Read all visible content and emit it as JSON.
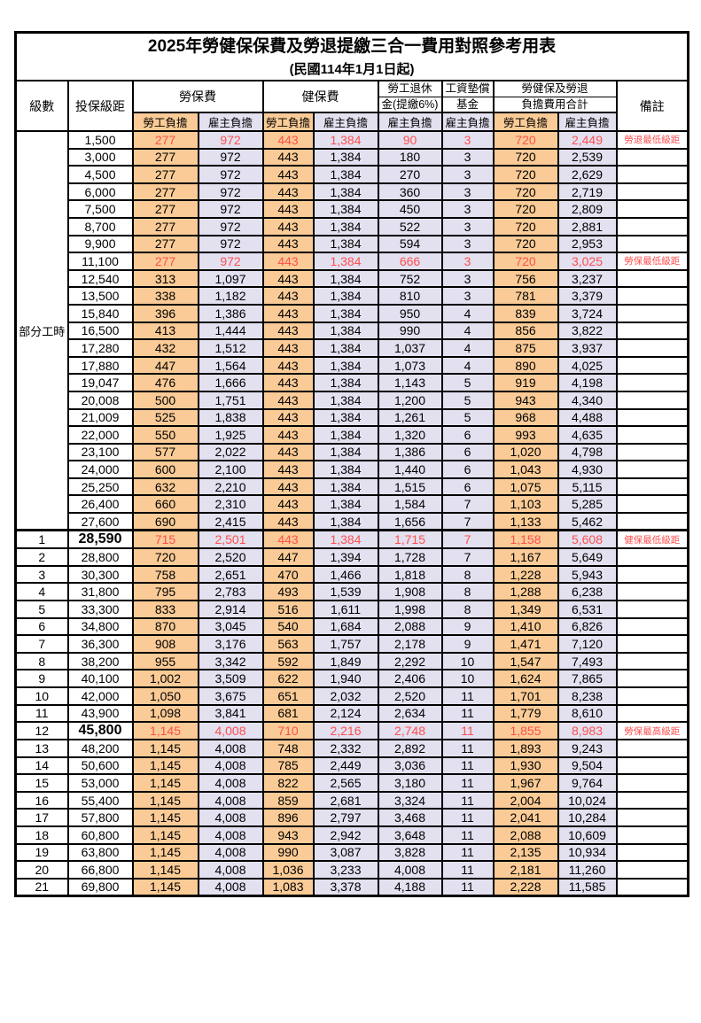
{
  "title": "2025年勞健保保費及勞退提繳三合一費用對照參考用表",
  "subtitle": "(民國114年1月1日起)",
  "header": {
    "level": "級數",
    "bracket": "投保級距",
    "labor_insurance": "勞保費",
    "health_insurance": "健保費",
    "pension_line1": "勞工退休",
    "pension_line2": "金(提繳6%)",
    "wage_fund_line1": "工資墊償",
    "wage_fund_line2": "基金",
    "total_line1": "勞健保及勞退",
    "total_line2": "負擔費用合計",
    "remark": "備註",
    "employee": "勞工負擔",
    "employer": "雇主負擔"
  },
  "part_time": {
    "label": "部分工時",
    "rowspan": 23
  },
  "colors": {
    "employee_bg": "#FACB96",
    "employer_bg": "#E3E0F0",
    "highlight_text": "#FF4F4F",
    "border": "#000000"
  },
  "rows": [
    {
      "bracket": "1,500",
      "li_emp": "277",
      "li_er": "972",
      "hi_emp": "443",
      "hi_er": "1,384",
      "pension": "90",
      "fund": "3",
      "tot_emp": "720",
      "tot_er": "2,449",
      "note": "勞退最低級距",
      "highlight": true
    },
    {
      "bracket": "3,000",
      "li_emp": "277",
      "li_er": "972",
      "hi_emp": "443",
      "hi_er": "1,384",
      "pension": "180",
      "fund": "3",
      "tot_emp": "720",
      "tot_er": "2,539"
    },
    {
      "bracket": "4,500",
      "li_emp": "277",
      "li_er": "972",
      "hi_emp": "443",
      "hi_er": "1,384",
      "pension": "270",
      "fund": "3",
      "tot_emp": "720",
      "tot_er": "2,629"
    },
    {
      "bracket": "6,000",
      "li_emp": "277",
      "li_er": "972",
      "hi_emp": "443",
      "hi_er": "1,384",
      "pension": "360",
      "fund": "3",
      "tot_emp": "720",
      "tot_er": "2,719"
    },
    {
      "bracket": "7,500",
      "li_emp": "277",
      "li_er": "972",
      "hi_emp": "443",
      "hi_er": "1,384",
      "pension": "450",
      "fund": "3",
      "tot_emp": "720",
      "tot_er": "2,809"
    },
    {
      "bracket": "8,700",
      "li_emp": "277",
      "li_er": "972",
      "hi_emp": "443",
      "hi_er": "1,384",
      "pension": "522",
      "fund": "3",
      "tot_emp": "720",
      "tot_er": "2,881"
    },
    {
      "bracket": "9,900",
      "li_emp": "277",
      "li_er": "972",
      "hi_emp": "443",
      "hi_er": "1,384",
      "pension": "594",
      "fund": "3",
      "tot_emp": "720",
      "tot_er": "2,953"
    },
    {
      "bracket": "11,100",
      "li_emp": "277",
      "li_er": "972",
      "hi_emp": "443",
      "hi_er": "1,384",
      "pension": "666",
      "fund": "3",
      "tot_emp": "720",
      "tot_er": "3,025",
      "note": "勞保最低級距",
      "highlight": true
    },
    {
      "bracket": "12,540",
      "li_emp": "313",
      "li_er": "1,097",
      "hi_emp": "443",
      "hi_er": "1,384",
      "pension": "752",
      "fund": "3",
      "tot_emp": "756",
      "tot_er": "3,237"
    },
    {
      "bracket": "13,500",
      "li_emp": "338",
      "li_er": "1,182",
      "hi_emp": "443",
      "hi_er": "1,384",
      "pension": "810",
      "fund": "3",
      "tot_emp": "781",
      "tot_er": "3,379"
    },
    {
      "bracket": "15,840",
      "li_emp": "396",
      "li_er": "1,386",
      "hi_emp": "443",
      "hi_er": "1,384",
      "pension": "950",
      "fund": "4",
      "tot_emp": "839",
      "tot_er": "3,724"
    },
    {
      "bracket": "16,500",
      "li_emp": "413",
      "li_er": "1,444",
      "hi_emp": "443",
      "hi_er": "1,384",
      "pension": "990",
      "fund": "4",
      "tot_emp": "856",
      "tot_er": "3,822"
    },
    {
      "bracket": "17,280",
      "li_emp": "432",
      "li_er": "1,512",
      "hi_emp": "443",
      "hi_er": "1,384",
      "pension": "1,037",
      "fund": "4",
      "tot_emp": "875",
      "tot_er": "3,937"
    },
    {
      "bracket": "17,880",
      "li_emp": "447",
      "li_er": "1,564",
      "hi_emp": "443",
      "hi_er": "1,384",
      "pension": "1,073",
      "fund": "4",
      "tot_emp": "890",
      "tot_er": "4,025"
    },
    {
      "bracket": "19,047",
      "li_emp": "476",
      "li_er": "1,666",
      "hi_emp": "443",
      "hi_er": "1,384",
      "pension": "1,143",
      "fund": "5",
      "tot_emp": "919",
      "tot_er": "4,198"
    },
    {
      "bracket": "20,008",
      "li_emp": "500",
      "li_er": "1,751",
      "hi_emp": "443",
      "hi_er": "1,384",
      "pension": "1,200",
      "fund": "5",
      "tot_emp": "943",
      "tot_er": "4,340"
    },
    {
      "bracket": "21,009",
      "li_emp": "525",
      "li_er": "1,838",
      "hi_emp": "443",
      "hi_er": "1,384",
      "pension": "1,261",
      "fund": "5",
      "tot_emp": "968",
      "tot_er": "4,488"
    },
    {
      "bracket": "22,000",
      "li_emp": "550",
      "li_er": "1,925",
      "hi_emp": "443",
      "hi_er": "1,384",
      "pension": "1,320",
      "fund": "6",
      "tot_emp": "993",
      "tot_er": "4,635"
    },
    {
      "bracket": "23,100",
      "li_emp": "577",
      "li_er": "2,022",
      "hi_emp": "443",
      "hi_er": "1,384",
      "pension": "1,386",
      "fund": "6",
      "tot_emp": "1,020",
      "tot_er": "4,798"
    },
    {
      "bracket": "24,000",
      "li_emp": "600",
      "li_er": "2,100",
      "hi_emp": "443",
      "hi_er": "1,384",
      "pension": "1,440",
      "fund": "6",
      "tot_emp": "1,043",
      "tot_er": "4,930"
    },
    {
      "bracket": "25,250",
      "li_emp": "632",
      "li_er": "2,210",
      "hi_emp": "443",
      "hi_er": "1,384",
      "pension": "1,515",
      "fund": "6",
      "tot_emp": "1,075",
      "tot_er": "5,115"
    },
    {
      "bracket": "26,400",
      "li_emp": "660",
      "li_er": "2,310",
      "hi_emp": "443",
      "hi_er": "1,384",
      "pension": "1,584",
      "fund": "7",
      "tot_emp": "1,103",
      "tot_er": "5,285"
    },
    {
      "bracket": "27,600",
      "li_emp": "690",
      "li_er": "2,415",
      "hi_emp": "443",
      "hi_er": "1,384",
      "pension": "1,656",
      "fund": "7",
      "tot_emp": "1,133",
      "tot_er": "5,462"
    },
    {
      "level": "1",
      "bracket": "28,590",
      "li_emp": "715",
      "li_er": "2,501",
      "hi_emp": "443",
      "hi_er": "1,384",
      "pension": "1,715",
      "fund": "7",
      "tot_emp": "1,158",
      "tot_er": "5,608",
      "note": "健保最低級距",
      "highlight": true,
      "bold": true,
      "section": true
    },
    {
      "level": "2",
      "bracket": "28,800",
      "li_emp": "720",
      "li_er": "2,520",
      "hi_emp": "447",
      "hi_er": "1,394",
      "pension": "1,728",
      "fund": "7",
      "tot_emp": "1,167",
      "tot_er": "5,649"
    },
    {
      "level": "3",
      "bracket": "30,300",
      "li_emp": "758",
      "li_er": "2,651",
      "hi_emp": "470",
      "hi_er": "1,466",
      "pension": "1,818",
      "fund": "8",
      "tot_emp": "1,228",
      "tot_er": "5,943"
    },
    {
      "level": "4",
      "bracket": "31,800",
      "li_emp": "795",
      "li_er": "2,783",
      "hi_emp": "493",
      "hi_er": "1,539",
      "pension": "1,908",
      "fund": "8",
      "tot_emp": "1,288",
      "tot_er": "6,238"
    },
    {
      "level": "5",
      "bracket": "33,300",
      "li_emp": "833",
      "li_er": "2,914",
      "hi_emp": "516",
      "hi_er": "1,611",
      "pension": "1,998",
      "fund": "8",
      "tot_emp": "1,349",
      "tot_er": "6,531"
    },
    {
      "level": "6",
      "bracket": "34,800",
      "li_emp": "870",
      "li_er": "3,045",
      "hi_emp": "540",
      "hi_er": "1,684",
      "pension": "2,088",
      "fund": "9",
      "tot_emp": "1,410",
      "tot_er": "6,826"
    },
    {
      "level": "7",
      "bracket": "36,300",
      "li_emp": "908",
      "li_er": "3,176",
      "hi_emp": "563",
      "hi_er": "1,757",
      "pension": "2,178",
      "fund": "9",
      "tot_emp": "1,471",
      "tot_er": "7,120"
    },
    {
      "level": "8",
      "bracket": "38,200",
      "li_emp": "955",
      "li_er": "3,342",
      "hi_emp": "592",
      "hi_er": "1,849",
      "pension": "2,292",
      "fund": "10",
      "tot_emp": "1,547",
      "tot_er": "7,493"
    },
    {
      "level": "9",
      "bracket": "40,100",
      "li_emp": "1,002",
      "li_er": "3,509",
      "hi_emp": "622",
      "hi_er": "1,940",
      "pension": "2,406",
      "fund": "10",
      "tot_emp": "1,624",
      "tot_er": "7,865"
    },
    {
      "level": "10",
      "bracket": "42,000",
      "li_emp": "1,050",
      "li_er": "3,675",
      "hi_emp": "651",
      "hi_er": "2,032",
      "pension": "2,520",
      "fund": "11",
      "tot_emp": "1,701",
      "tot_er": "8,238"
    },
    {
      "level": "11",
      "bracket": "43,900",
      "li_emp": "1,098",
      "li_er": "3,841",
      "hi_emp": "681",
      "hi_er": "2,124",
      "pension": "2,634",
      "fund": "11",
      "tot_emp": "1,779",
      "tot_er": "8,610"
    },
    {
      "level": "12",
      "bracket": "45,800",
      "li_emp": "1,145",
      "li_er": "4,008",
      "hi_emp": "710",
      "hi_er": "2,216",
      "pension": "2,748",
      "fund": "11",
      "tot_emp": "1,855",
      "tot_er": "8,983",
      "note": "勞保最高級距",
      "highlight": true,
      "bold": true
    },
    {
      "level": "13",
      "bracket": "48,200",
      "li_emp": "1,145",
      "li_er": "4,008",
      "hi_emp": "748",
      "hi_er": "2,332",
      "pension": "2,892",
      "fund": "11",
      "tot_emp": "1,893",
      "tot_er": "9,243"
    },
    {
      "level": "14",
      "bracket": "50,600",
      "li_emp": "1,145",
      "li_er": "4,008",
      "hi_emp": "785",
      "hi_er": "2,449",
      "pension": "3,036",
      "fund": "11",
      "tot_emp": "1,930",
      "tot_er": "9,504"
    },
    {
      "level": "15",
      "bracket": "53,000",
      "li_emp": "1,145",
      "li_er": "4,008",
      "hi_emp": "822",
      "hi_er": "2,565",
      "pension": "3,180",
      "fund": "11",
      "tot_emp": "1,967",
      "tot_er": "9,764"
    },
    {
      "level": "16",
      "bracket": "55,400",
      "li_emp": "1,145",
      "li_er": "4,008",
      "hi_emp": "859",
      "hi_er": "2,681",
      "pension": "3,324",
      "fund": "11",
      "tot_emp": "2,004",
      "tot_er": "10,024"
    },
    {
      "level": "17",
      "bracket": "57,800",
      "li_emp": "1,145",
      "li_er": "4,008",
      "hi_emp": "896",
      "hi_er": "2,797",
      "pension": "3,468",
      "fund": "11",
      "tot_emp": "2,041",
      "tot_er": "10,284"
    },
    {
      "level": "18",
      "bracket": "60,800",
      "li_emp": "1,145",
      "li_er": "4,008",
      "hi_emp": "943",
      "hi_er": "2,942",
      "pension": "3,648",
      "fund": "11",
      "tot_emp": "2,088",
      "tot_er": "10,609"
    },
    {
      "level": "19",
      "bracket": "63,800",
      "li_emp": "1,145",
      "li_er": "4,008",
      "hi_emp": "990",
      "hi_er": "3,087",
      "pension": "3,828",
      "fund": "11",
      "tot_emp": "2,135",
      "tot_er": "10,934"
    },
    {
      "level": "20",
      "bracket": "66,800",
      "li_emp": "1,145",
      "li_er": "4,008",
      "hi_emp": "1,036",
      "hi_er": "3,233",
      "pension": "4,008",
      "fund": "11",
      "tot_emp": "2,181",
      "tot_er": "11,260"
    },
    {
      "level": "21",
      "bracket": "69,800",
      "li_emp": "1,145",
      "li_er": "4,008",
      "hi_emp": "1,083",
      "hi_er": "3,378",
      "pension": "4,188",
      "fund": "11",
      "tot_emp": "2,228",
      "tot_er": "11,585"
    }
  ]
}
